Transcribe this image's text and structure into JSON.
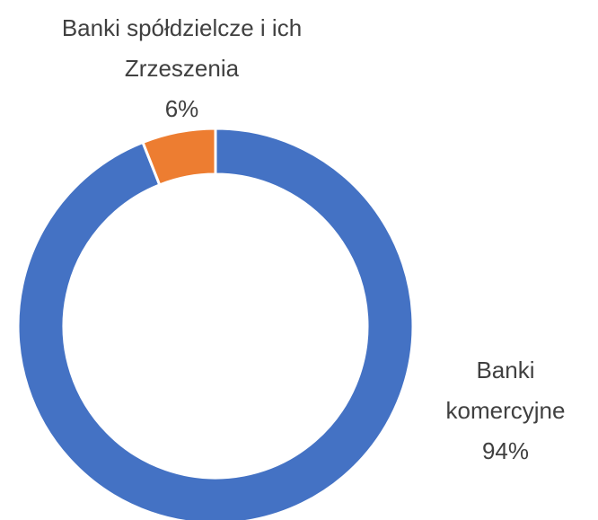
{
  "chart_data": {
    "type": "donut",
    "categories": [
      "Banki komercyjne",
      "Banki spółdzielcze i ich Zrzeszenia"
    ],
    "values": [
      94,
      6
    ],
    "value_labels": [
      "94%",
      "6%"
    ],
    "colors": [
      "#4472c4",
      "#ed7d31"
    ]
  }
}
